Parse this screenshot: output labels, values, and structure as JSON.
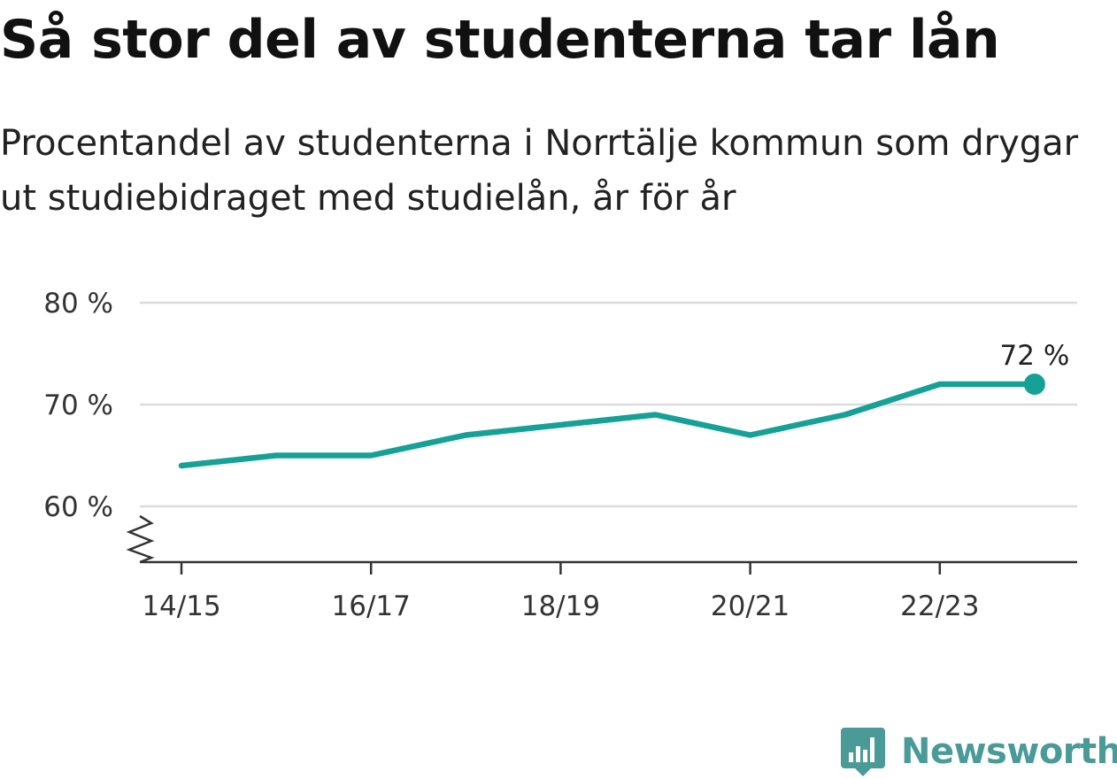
{
  "header": {
    "title": "Så stor del av studenterna tar lån",
    "subtitle": "Procentandel av studenterna i Norrtälje kommun som drygar ut studiebidraget med studielån, år för år"
  },
  "chart_data": {
    "type": "line",
    "categories": [
      "14/15",
      "15/16",
      "16/17",
      "17/18",
      "18/19",
      "19/20",
      "20/21",
      "21/22",
      "22/23",
      "23/24"
    ],
    "x_tick_labels": [
      "14/15",
      "16/17",
      "18/19",
      "20/21",
      "22/23"
    ],
    "series": [
      {
        "values": [
          64,
          65,
          65,
          67,
          68,
          69,
          67,
          69,
          72,
          72
        ]
      }
    ],
    "y_tick_values": [
      60,
      70,
      80
    ],
    "y_tick_labels": [
      "60 %",
      "70 %",
      "80 %"
    ],
    "ylim": [
      60,
      80
    ],
    "axis_break": true,
    "grid": true,
    "end_label": "72 %",
    "colors": {
      "line": "#16a196",
      "grid": "#dcdcdc",
      "axis": "#333333"
    }
  },
  "brand": {
    "name": "Newsworthy",
    "icon": "newsworthy-logo-icon",
    "color": "#4a9b98"
  }
}
